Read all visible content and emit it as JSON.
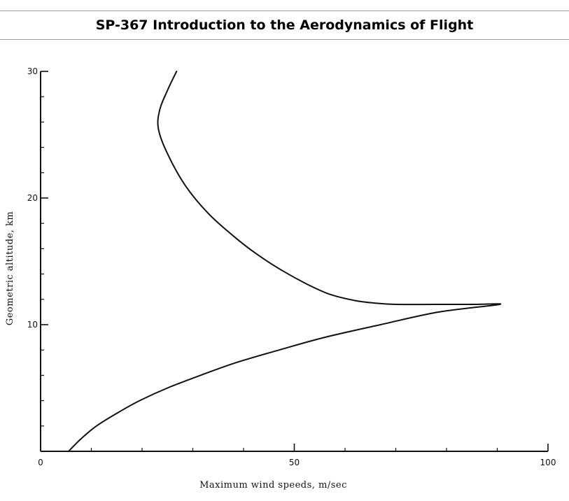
{
  "header": {
    "title": "SP-367 Introduction to the Aerodynamics of Flight"
  },
  "chart_data": {
    "type": "line",
    "title": "",
    "xlabel": "Maximum wind speeds, m/sec",
    "ylabel": "Geometric altitude, km",
    "xlim": [
      0,
      100
    ],
    "ylim": [
      0,
      30
    ],
    "x_ticks": [
      0,
      50,
      100
    ],
    "x_tick_labels": [
      "0",
      "50",
      "100"
    ],
    "y_ticks": [
      10,
      20,
      30
    ],
    "y_tick_labels": [
      "10",
      "20",
      "30"
    ],
    "grid": false,
    "series": [
      {
        "name": "",
        "points": [
          [
            5.5,
            0
          ],
          [
            8,
            1
          ],
          [
            11,
            2
          ],
          [
            15,
            3
          ],
          [
            19.5,
            4
          ],
          [
            25,
            5
          ],
          [
            31.5,
            6
          ],
          [
            38.5,
            7
          ],
          [
            47,
            8
          ],
          [
            56,
            9
          ],
          [
            67,
            10
          ],
          [
            78.5,
            11
          ],
          [
            90.5,
            11.6
          ],
          [
            85,
            11.6
          ],
          [
            78,
            11.6
          ],
          [
            70,
            11.6
          ],
          [
            66,
            11.7
          ],
          [
            62,
            11.9
          ],
          [
            57,
            12.4
          ],
          [
            52.5,
            13.2
          ],
          [
            47.5,
            14.3
          ],
          [
            42.5,
            15.6
          ],
          [
            38,
            17
          ],
          [
            33,
            18.8
          ],
          [
            28.5,
            21
          ],
          [
            25,
            23.5
          ],
          [
            23.2,
            25.5
          ],
          [
            23.5,
            27
          ],
          [
            25,
            28.5
          ],
          [
            26.8,
            30
          ]
        ]
      }
    ]
  }
}
